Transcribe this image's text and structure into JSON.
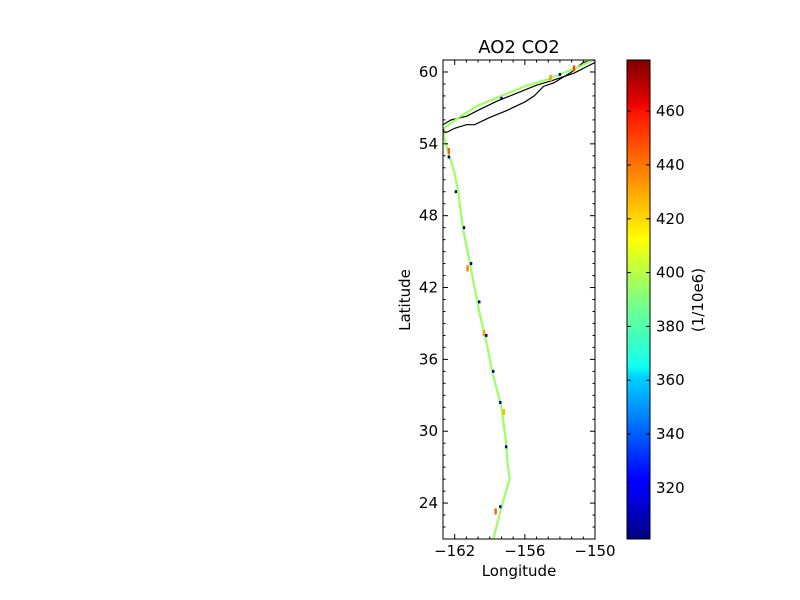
{
  "chart_data": {
    "type": "scatter",
    "title": "AO2 CO2",
    "xlabel": "Longitude",
    "ylabel": "Latitude",
    "xlim": [
      -163,
      -150
    ],
    "ylim": [
      21,
      61
    ],
    "xticks": [
      -162,
      -156,
      -150
    ],
    "yticks": [
      24,
      30,
      36,
      42,
      48,
      54,
      60
    ],
    "xtick_labels": [
      "−162",
      "−156",
      "−150"
    ],
    "ytick_labels": [
      "24",
      "30",
      "36",
      "42",
      "48",
      "54",
      "60"
    ],
    "grid": false,
    "colorbar": {
      "label": "(1/10e6)",
      "range": [
        301,
        479
      ],
      "ticks": [
        320,
        340,
        360,
        380,
        400,
        420,
        440,
        460
      ],
      "colormap": "jet"
    },
    "track": {
      "color_value": 395,
      "points": [
        [
          -158.7,
          21.0
        ],
        [
          -158.3,
          22.5
        ],
        [
          -157.9,
          24.0
        ],
        [
          -157.6,
          25.0
        ],
        [
          -157.3,
          26.0
        ],
        [
          -157.5,
          27.5
        ],
        [
          -157.6,
          29.0
        ],
        [
          -157.8,
          30.5
        ],
        [
          -158.0,
          32.0
        ],
        [
          -158.4,
          33.5
        ],
        [
          -158.8,
          35.0
        ],
        [
          -159.1,
          36.5
        ],
        [
          -159.4,
          38.0
        ],
        [
          -159.8,
          39.5
        ],
        [
          -160.1,
          41.0
        ],
        [
          -160.4,
          42.5
        ],
        [
          -160.7,
          44.0
        ],
        [
          -161.0,
          45.5
        ],
        [
          -161.3,
          47.0
        ],
        [
          -161.5,
          48.5
        ],
        [
          -161.7,
          50.0
        ],
        [
          -162.0,
          51.5
        ],
        [
          -162.3,
          52.5
        ],
        [
          -162.6,
          53.5
        ],
        [
          -162.9,
          54.5
        ],
        [
          -163.0,
          55.2
        ],
        [
          -162.5,
          55.6
        ],
        [
          -161.5,
          56.3
        ],
        [
          -160.0,
          57.2
        ],
        [
          -158.0,
          58.0
        ],
        [
          -156.0,
          58.8
        ],
        [
          -154.0,
          59.4
        ],
        [
          -152.5,
          60.0
        ],
        [
          -151.2,
          60.5
        ],
        [
          -150.2,
          61.0
        ]
      ]
    },
    "highlight_points": [
      {
        "lon": -158.5,
        "lat": 23.3,
        "value": 440
      },
      {
        "lon": -157.8,
        "lat": 31.6,
        "value": 425
      },
      {
        "lon": -159.5,
        "lat": 38.2,
        "value": 430
      },
      {
        "lon": -160.9,
        "lat": 43.6,
        "value": 435
      },
      {
        "lon": -162.5,
        "lat": 53.4,
        "value": 440
      },
      {
        "lon": -153.8,
        "lat": 59.5,
        "value": 430
      },
      {
        "lon": -151.8,
        "lat": 60.3,
        "value": 445
      }
    ],
    "dark_points": [
      {
        "lon": -158.1,
        "lat": 23.7,
        "value": 305
      },
      {
        "lon": -157.6,
        "lat": 28.7,
        "value": 305
      },
      {
        "lon": -158.1,
        "lat": 32.4,
        "value": 305
      },
      {
        "lon": -158.7,
        "lat": 35.0,
        "value": 305
      },
      {
        "lon": -159.3,
        "lat": 38.0,
        "value": 305
      },
      {
        "lon": -159.9,
        "lat": 40.8,
        "value": 305
      },
      {
        "lon": -160.6,
        "lat": 44.0,
        "value": 305
      },
      {
        "lon": -161.2,
        "lat": 47.0,
        "value": 305
      },
      {
        "lon": -161.9,
        "lat": 50.0,
        "value": 305
      },
      {
        "lon": -162.5,
        "lat": 52.9,
        "value": 305
      },
      {
        "lon": -163.0,
        "lat": 55.1,
        "value": 305
      },
      {
        "lon": -158.0,
        "lat": 57.8,
        "value": 305
      },
      {
        "lon": -153.0,
        "lat": 59.8,
        "value": 305
      }
    ],
    "coastlines": [
      [
        [
          -163.0,
          55.6
        ],
        [
          -162.3,
          56.0
        ],
        [
          -161.0,
          56.3
        ],
        [
          -160.0,
          56.8
        ],
        [
          -158.3,
          57.6
        ],
        [
          -156.5,
          58.3
        ],
        [
          -155.0,
          58.9
        ],
        [
          -153.6,
          59.3
        ],
        [
          -151.8,
          59.9
        ],
        [
          -150.6,
          60.5
        ],
        [
          -150.0,
          60.8
        ]
      ],
      [
        [
          -150.0,
          61.0
        ],
        [
          -151.0,
          60.8
        ],
        [
          -152.0,
          60.0
        ],
        [
          -153.5,
          59.1
        ],
        [
          -154.4,
          58.8
        ],
        [
          -155.2,
          58.0
        ],
        [
          -156.0,
          57.5
        ],
        [
          -157.5,
          56.8
        ],
        [
          -159.0,
          56.2
        ],
        [
          -160.3,
          55.6
        ],
        [
          -161.0,
          55.6
        ],
        [
          -162.0,
          55.3
        ],
        [
          -162.6,
          55.0
        ],
        [
          -163.0,
          54.9
        ]
      ]
    ]
  }
}
